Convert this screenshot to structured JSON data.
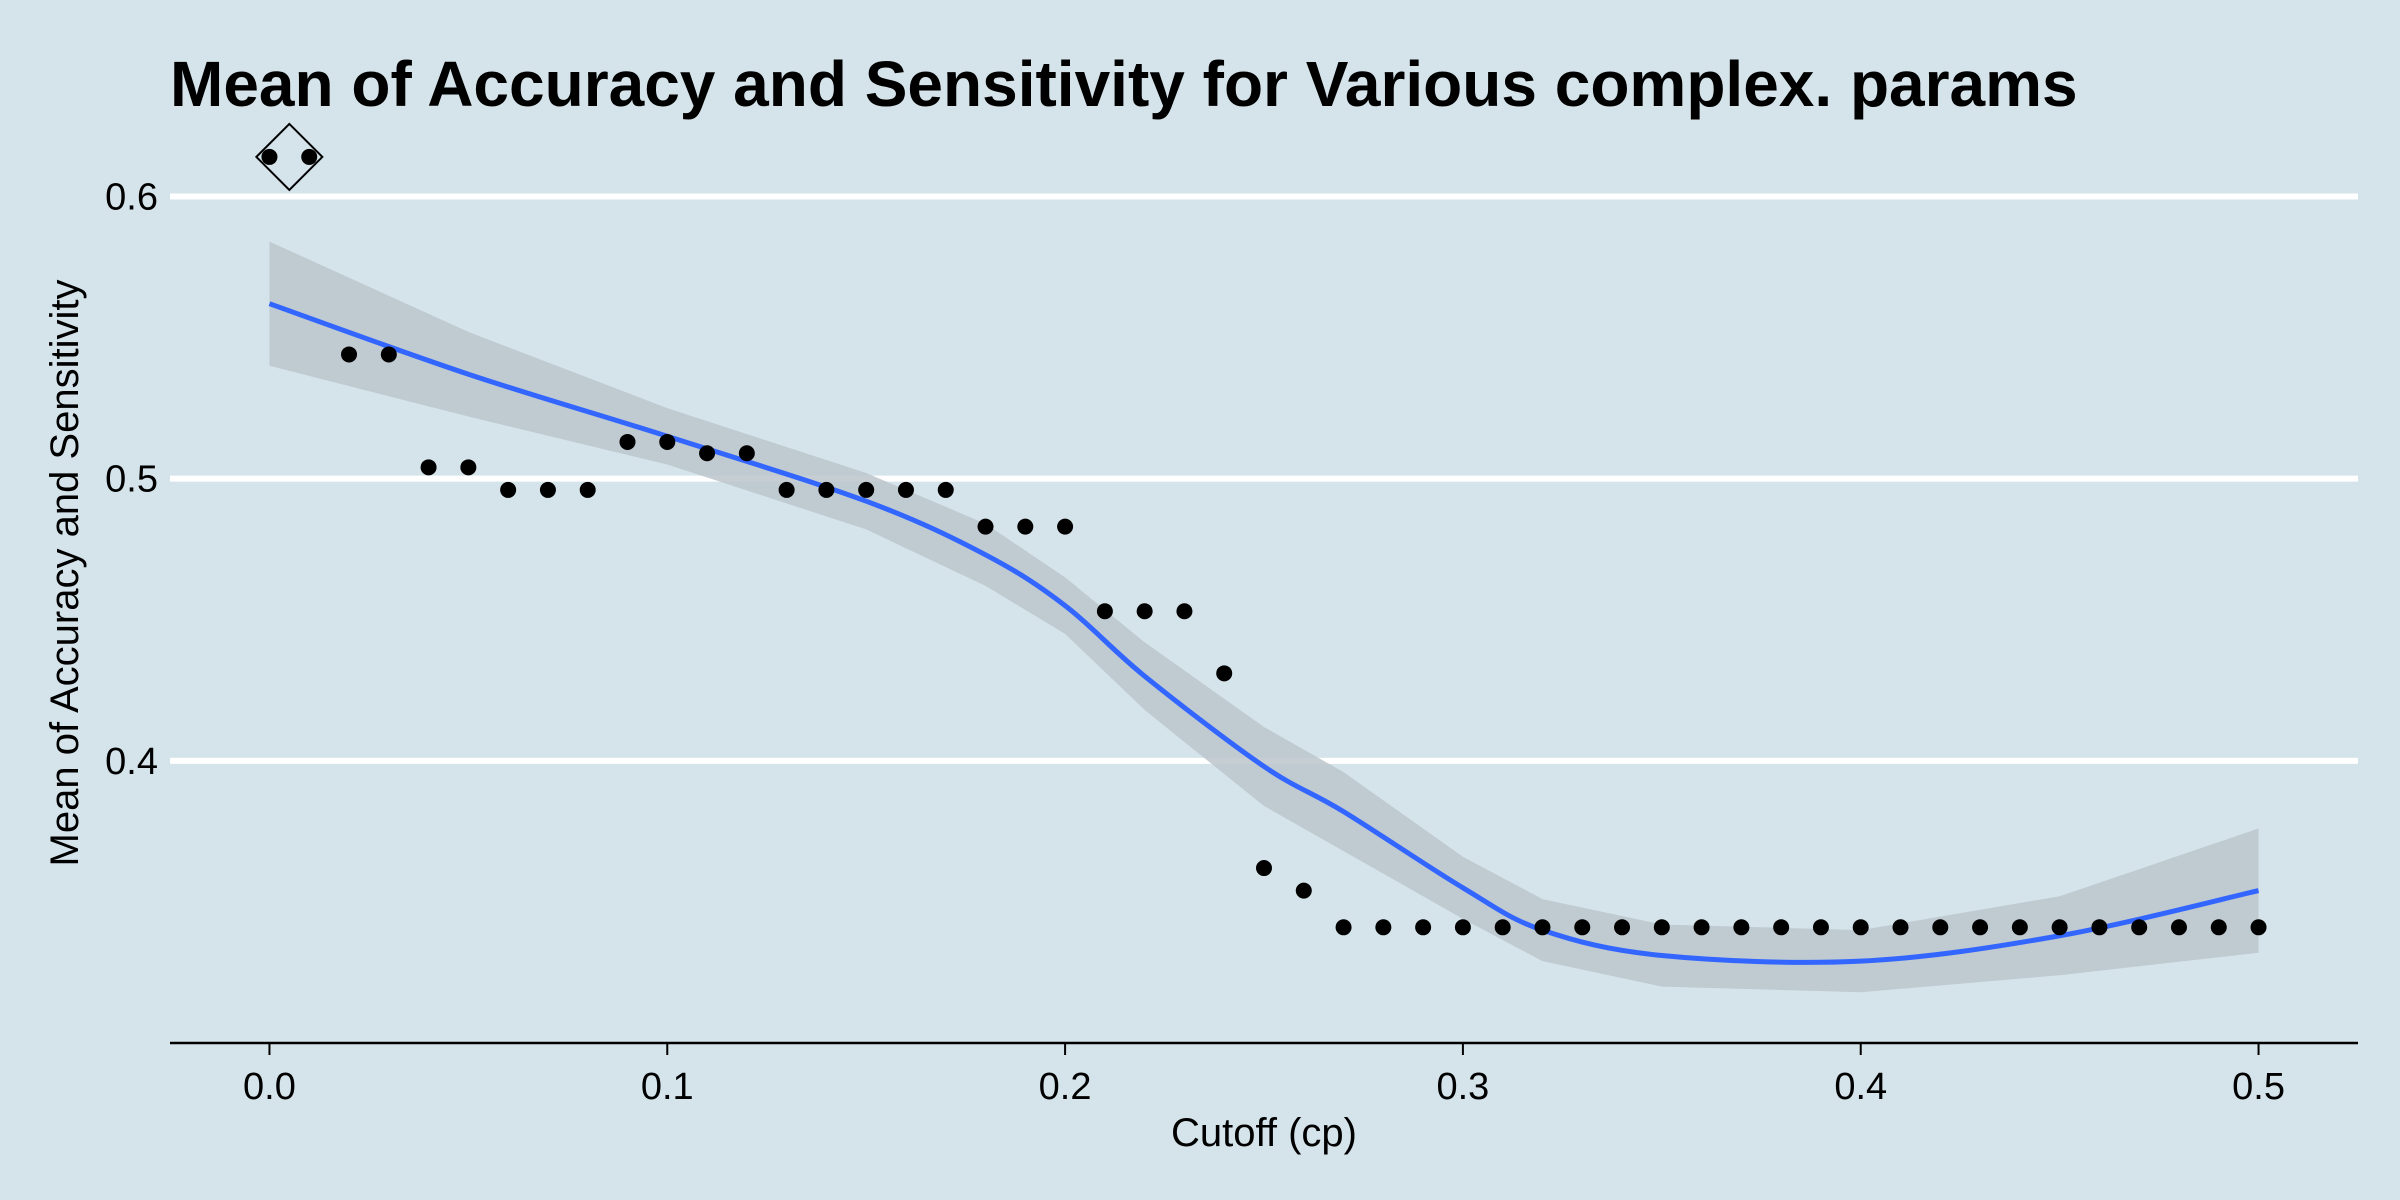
{
  "chart_data": {
    "type": "scatter",
    "title": "Mean of Accuracy and Sensitivity for Various complex. params",
    "xlabel": "Cutoff (cp)",
    "ylabel": "Mean of Accuracy and Sensitivity",
    "xlim": [
      -0.025,
      0.525
    ],
    "ylim": [
      0.3,
      0.62
    ],
    "x_ticks": [
      0.0,
      0.1,
      0.2,
      0.3,
      0.4,
      0.5
    ],
    "x_tick_labels": [
      "0.0",
      "0.1",
      "0.2",
      "0.3",
      "0.4",
      "0.5"
    ],
    "y_ticks": [
      0.4,
      0.5,
      0.6
    ],
    "y_tick_labels": [
      "0.4",
      "0.5",
      "0.6"
    ],
    "grid": "horizontal major gridlines",
    "colors": {
      "background": "#d5e4eb",
      "gridline": "#ffffff",
      "points": "#000000",
      "smooth_line": "#3366ff",
      "confidence_band": "#bcc5cc"
    },
    "points": {
      "x": [
        0.0,
        0.01,
        0.02,
        0.03,
        0.04,
        0.05,
        0.06,
        0.07,
        0.08,
        0.09,
        0.1,
        0.11,
        0.12,
        0.13,
        0.14,
        0.15,
        0.16,
        0.17,
        0.18,
        0.19,
        0.2,
        0.21,
        0.22,
        0.23,
        0.24,
        0.25,
        0.26,
        0.27,
        0.28,
        0.29,
        0.3,
        0.31,
        0.32,
        0.33,
        0.34,
        0.35,
        0.36,
        0.37,
        0.38,
        0.39,
        0.4,
        0.41,
        0.42,
        0.43,
        0.44,
        0.45,
        0.46,
        0.47,
        0.48,
        0.49,
        0.5
      ],
      "y": [
        0.614,
        0.614,
        0.544,
        0.544,
        0.504,
        0.504,
        0.496,
        0.496,
        0.496,
        0.513,
        0.513,
        0.509,
        0.509,
        0.496,
        0.496,
        0.496,
        0.496,
        0.496,
        0.483,
        0.483,
        0.483,
        0.453,
        0.453,
        0.453,
        0.431,
        0.362,
        0.354,
        0.341,
        0.341,
        0.341,
        0.341,
        0.341,
        0.341,
        0.341,
        0.341,
        0.341,
        0.341,
        0.341,
        0.341,
        0.341,
        0.341,
        0.341,
        0.341,
        0.341,
        0.341,
        0.341,
        0.341,
        0.341,
        0.341,
        0.341,
        0.341
      ]
    },
    "highlighted_point": {
      "x": 0.005,
      "y": 0.614,
      "marker": "diamond"
    },
    "smooth": {
      "method": "loess",
      "x": [
        0.0,
        0.05,
        0.1,
        0.15,
        0.18,
        0.2,
        0.22,
        0.25,
        0.27,
        0.3,
        0.32,
        0.35,
        0.4,
        0.45,
        0.5
      ],
      "y": [
        0.562,
        0.537,
        0.515,
        0.492,
        0.473,
        0.455,
        0.43,
        0.398,
        0.382,
        0.355,
        0.34,
        0.331,
        0.329,
        0.338,
        0.354
      ],
      "lower": [
        0.54,
        0.522,
        0.505,
        0.482,
        0.462,
        0.445,
        0.418,
        0.384,
        0.368,
        0.344,
        0.329,
        0.32,
        0.318,
        0.324,
        0.332
      ],
      "upper": [
        0.584,
        0.552,
        0.525,
        0.502,
        0.484,
        0.465,
        0.442,
        0.412,
        0.396,
        0.366,
        0.351,
        0.342,
        0.34,
        0.352,
        0.376
      ]
    }
  }
}
